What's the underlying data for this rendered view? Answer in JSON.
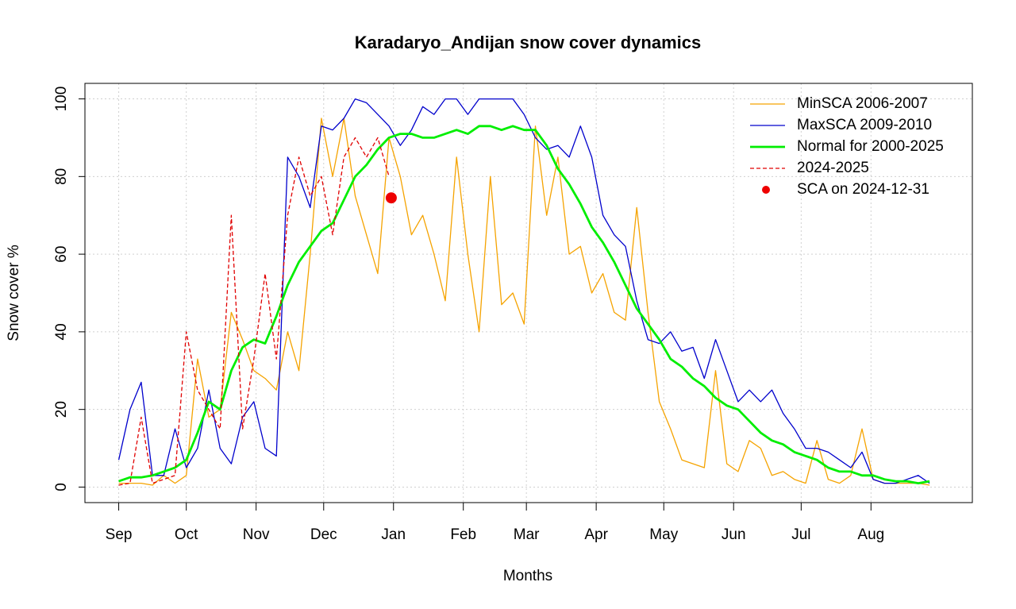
{
  "chart_data": {
    "type": "line",
    "title": "Karadaryo_Andijan snow cover dynamics",
    "x_label": "Months",
    "y_label": "Snow cover %",
    "x": [
      0,
      5,
      10,
      15,
      20,
      25,
      30,
      35,
      40,
      45,
      50,
      55,
      60,
      65,
      70,
      75,
      80,
      85,
      90,
      95,
      100,
      105,
      110,
      115,
      120,
      125,
      130,
      135,
      140,
      145,
      150,
      155,
      160,
      165,
      170,
      175,
      180,
      185,
      190,
      195,
      200,
      205,
      210,
      215,
      220,
      225,
      230,
      235,
      240,
      245,
      250,
      255,
      260,
      265,
      270,
      275,
      280,
      285,
      290,
      295,
      300,
      305,
      310,
      315,
      320,
      325,
      330,
      335,
      340,
      345,
      350,
      355,
      360
    ],
    "series": [
      {
        "name": "MinSCA 2006-2007",
        "color": "#f5a300",
        "dash": false,
        "width": 1.3,
        "values": [
          1,
          1,
          1,
          0.5,
          3,
          1,
          3,
          33,
          18,
          20,
          45,
          38,
          30,
          28,
          25,
          40,
          30,
          60,
          95,
          80,
          95,
          75,
          65,
          55,
          90,
          80,
          65,
          70,
          60,
          48,
          85,
          60,
          40,
          80,
          47,
          50,
          42,
          93,
          70,
          85,
          60,
          62,
          50,
          55,
          45,
          43,
          72,
          45,
          22,
          15,
          7,
          6,
          5,
          30,
          6,
          4,
          12,
          10,
          3,
          4,
          2,
          1,
          12,
          2,
          1,
          3,
          15,
          2,
          1,
          1,
          1,
          1,
          0.5
        ]
      },
      {
        "name": "MaxSCA 2009-2010",
        "color": "#0000cc",
        "dash": false,
        "width": 1.3,
        "values": [
          7,
          20,
          27,
          3,
          3,
          15,
          5,
          10,
          25,
          10,
          6,
          18,
          22,
          10,
          8,
          85,
          80,
          72,
          93,
          92,
          95,
          100,
          99,
          96,
          93,
          88,
          92,
          98,
          96,
          100,
          100,
          96,
          100,
          100,
          100,
          100,
          96,
          90,
          87,
          88,
          85,
          93,
          85,
          70,
          65,
          62,
          48,
          38,
          37,
          40,
          35,
          36,
          28,
          38,
          30,
          22,
          25,
          22,
          25,
          19,
          15,
          10,
          10,
          9,
          7,
          5,
          9,
          2,
          1,
          1,
          2,
          3,
          1
        ]
      },
      {
        "name": "Normal for 2000-2025",
        "color": "#00ee00",
        "dash": false,
        "width": 2.8,
        "values": [
          1.5,
          2.5,
          2.5,
          3,
          4,
          5,
          7,
          14,
          22,
          20,
          30,
          36,
          38,
          37,
          44,
          52,
          58,
          62,
          66,
          68,
          74,
          80,
          83,
          87,
          90,
          91,
          91,
          90,
          90,
          91,
          92,
          91,
          93,
          93,
          92,
          93,
          92,
          92,
          88,
          82,
          78,
          73,
          67,
          63,
          58,
          52,
          46,
          42,
          38,
          33,
          31,
          28,
          26,
          23,
          21,
          20,
          17,
          14,
          12,
          11,
          9,
          8,
          7,
          5,
          4,
          4,
          3,
          3,
          2,
          1.5,
          1.5,
          1,
          1.5
        ]
      },
      {
        "name": "2024-2025",
        "color": "#e00000",
        "dash": true,
        "width": 1.3,
        "values": [
          0.5,
          1,
          18,
          1,
          2,
          3,
          40,
          25,
          20,
          15,
          70,
          15,
          33,
          55,
          33,
          70,
          85,
          75,
          80,
          65,
          85,
          90,
          85,
          90,
          80,
          null,
          null,
          null,
          null,
          null,
          null,
          null,
          null,
          null,
          null,
          null,
          null,
          null,
          null,
          null,
          null,
          null,
          null,
          null,
          null,
          null,
          null,
          null,
          null,
          null,
          null,
          null,
          null,
          null,
          null,
          null,
          null,
          null,
          null,
          null,
          null,
          null,
          null,
          null,
          null,
          null,
          null,
          null,
          null,
          null,
          null,
          null,
          null
        ]
      }
    ],
    "point": {
      "name": "SCA on 2024-12-31",
      "color": "#ee0000",
      "x": 121,
      "value": 74.5
    },
    "xlim": [
      -15,
      379
    ],
    "ylim": [
      -4,
      104
    ],
    "xticks": [
      {
        "value": 0,
        "label": "Sep"
      },
      {
        "value": 30,
        "label": "Oct"
      },
      {
        "value": 61,
        "label": "Nov"
      },
      {
        "value": 91,
        "label": "Dec"
      },
      {
        "value": 122,
        "label": "Jan"
      },
      {
        "value": 153,
        "label": "Feb"
      },
      {
        "value": 181,
        "label": "Mar"
      },
      {
        "value": 212,
        "label": "Apr"
      },
      {
        "value": 242,
        "label": "May"
      },
      {
        "value": 273,
        "label": "Jun"
      },
      {
        "value": 303,
        "label": "Jul"
      },
      {
        "value": 334,
        "label": "Aug"
      }
    ],
    "yticks": [
      0,
      20,
      40,
      60,
      80,
      100
    ],
    "grid": true,
    "legend": "top-right"
  }
}
